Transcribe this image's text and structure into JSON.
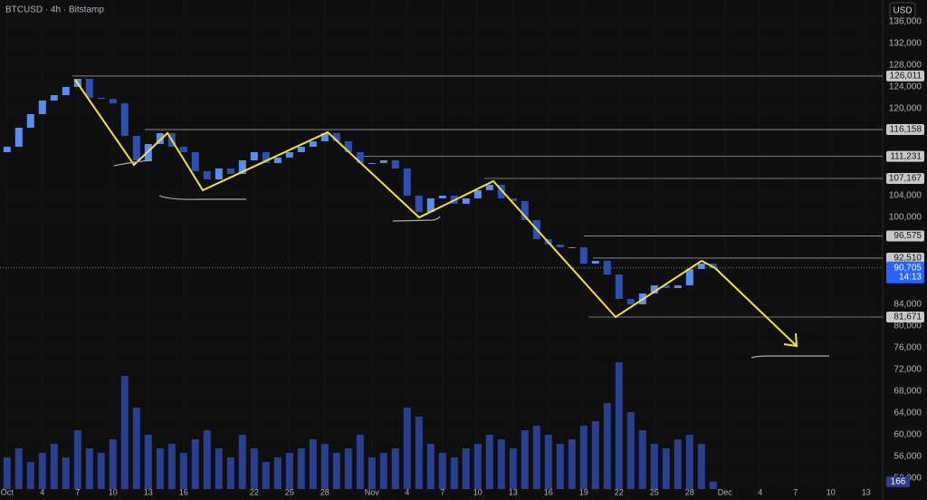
{
  "chart_data": {
    "type": "candlestick",
    "title": "BTCUSD · 4h · Bitstamp",
    "currency_button": "USD",
    "x": [
      0,
      1,
      2,
      3,
      4,
      5,
      6,
      7,
      8,
      9,
      10,
      11,
      12,
      13,
      14,
      15,
      16,
      17,
      18,
      19,
      20,
      21,
      22,
      23,
      24,
      25,
      26,
      27,
      28,
      29,
      30,
      31,
      32,
      33,
      34,
      35,
      36,
      37,
      38,
      39,
      40,
      41,
      42,
      43,
      44,
      45,
      46,
      47,
      48,
      49,
      50,
      51,
      52,
      53,
      54,
      55,
      56,
      57,
      58,
      59,
      60
    ],
    "open": [
      112000,
      113000,
      116500,
      119000,
      121500,
      122500,
      124000,
      125500,
      122000,
      121800,
      121000,
      115000,
      110500,
      113500,
      115500,
      113000,
      112000,
      108500,
      107000,
      109000,
      108000,
      110500,
      112000,
      110000,
      111000,
      112000,
      113000,
      114000,
      115500,
      114000,
      112000,
      110000,
      110000,
      110500,
      109000,
      104000,
      101000,
      103500,
      104000,
      102500,
      103500,
      105000,
      106000,
      103500,
      103000,
      99500,
      96000,
      95000,
      94500,
      94500,
      91500,
      92000,
      89500,
      85000,
      84000,
      86000,
      87500,
      87000,
      87500,
      90500,
      91500
    ],
    "values": [
      113000,
      116500,
      119000,
      121500,
      122500,
      124000,
      125500,
      122000,
      121800,
      121000,
      115000,
      110500,
      113500,
      115500,
      113000,
      112000,
      108500,
      107000,
      109000,
      108000,
      110500,
      112000,
      110000,
      111000,
      112000,
      113000,
      114000,
      115500,
      114000,
      112000,
      110000,
      110000,
      110500,
      109000,
      104000,
      101000,
      103500,
      104000,
      102500,
      103500,
      105000,
      106000,
      103500,
      103000,
      99500,
      96000,
      95000,
      94500,
      94500,
      91500,
      92000,
      89500,
      85000,
      84000,
      86000,
      87500,
      87000,
      87500,
      90500,
      91500,
      90705
    ],
    "last_value_label": "90,705",
    "countdown": "14:13",
    "up_color": "#5b8cf0",
    "down_color": "#2c4fb0",
    "volume": [
      700,
      900,
      600,
      800,
      1000,
      700,
      1300,
      900,
      800,
      1100,
      2500,
      1800,
      1200,
      900,
      1000,
      800,
      1100,
      1300,
      900,
      700,
      1200,
      900,
      600,
      700,
      800,
      900,
      1100,
      1000,
      800,
      900,
      1200,
      700,
      800,
      900,
      1800,
      1600,
      1000,
      800,
      700,
      900,
      1000,
      1200,
      1100,
      900,
      1300,
      1400,
      1200,
      1000,
      1100,
      1400,
      1500,
      1900,
      2800,
      1700,
      1300,
      1000,
      900,
      1100,
      1200,
      1000,
      166
    ],
    "volume_lim": [
      0,
      3000
    ],
    "volume_color": "#2a3f8f",
    "xlim": [
      -0.6,
      74.4
    ],
    "ylim": [
      50000,
      140000
    ],
    "xticks": [
      {
        "value": 0,
        "label": "Oct"
      },
      {
        "value": 3,
        "label": "4"
      },
      {
        "value": 6,
        "label": "7"
      },
      {
        "value": 9,
        "label": "10"
      },
      {
        "value": 12,
        "label": "13"
      },
      {
        "value": 15,
        "label": "16"
      },
      {
        "value": 21,
        "label": "22"
      },
      {
        "value": 24,
        "label": "25"
      },
      {
        "value": 27,
        "label": "28"
      },
      {
        "value": 31,
        "label": "Nov"
      },
      {
        "value": 34,
        "label": "4"
      },
      {
        "value": 37,
        "label": "7"
      },
      {
        "value": 40,
        "label": "10"
      },
      {
        "value": 43,
        "label": "13"
      },
      {
        "value": 46,
        "label": "16"
      },
      {
        "value": 49,
        "label": "19"
      },
      {
        "value": 52,
        "label": "22"
      },
      {
        "value": 55,
        "label": "25"
      },
      {
        "value": 58,
        "label": "28"
      },
      {
        "value": 61,
        "label": "Dec"
      },
      {
        "value": 64,
        "label": "4"
      },
      {
        "value": 67,
        "label": "7"
      },
      {
        "value": 70,
        "label": "10"
      },
      {
        "value": 73,
        "label": "13"
      }
    ],
    "yticks": [
      {
        "value": 136000,
        "label": "136,000"
      },
      {
        "value": 132000,
        "label": "132,000"
      },
      {
        "value": 128000,
        "label": "128,000"
      },
      {
        "value": 124000,
        "label": "124,000"
      },
      {
        "value": 120000,
        "label": "120,000"
      },
      {
        "value": 104000,
        "label": "104,000"
      },
      {
        "value": 100000,
        "label": "100,000"
      },
      {
        "value": 84000,
        "label": "84,000"
      },
      {
        "value": 80000,
        "label": "80,000"
      },
      {
        "value": 76000,
        "label": "76,000"
      },
      {
        "value": 72000,
        "label": "72,000"
      },
      {
        "value": 68000,
        "label": "68,000"
      },
      {
        "value": 64000,
        "label": "64,000"
      },
      {
        "value": 60000,
        "label": "60,000"
      },
      {
        "value": 56000,
        "label": "56,000"
      },
      {
        "value": 52000,
        "label": "52,000"
      }
    ],
    "levels": [
      126011,
      116158,
      111231,
      107167,
      96575,
      92510,
      81671
    ],
    "level_labels": [
      "126,011",
      "116,158",
      "111,231",
      "107,167",
      "96,575",
      "92,510",
      "81,671"
    ]
  }
}
